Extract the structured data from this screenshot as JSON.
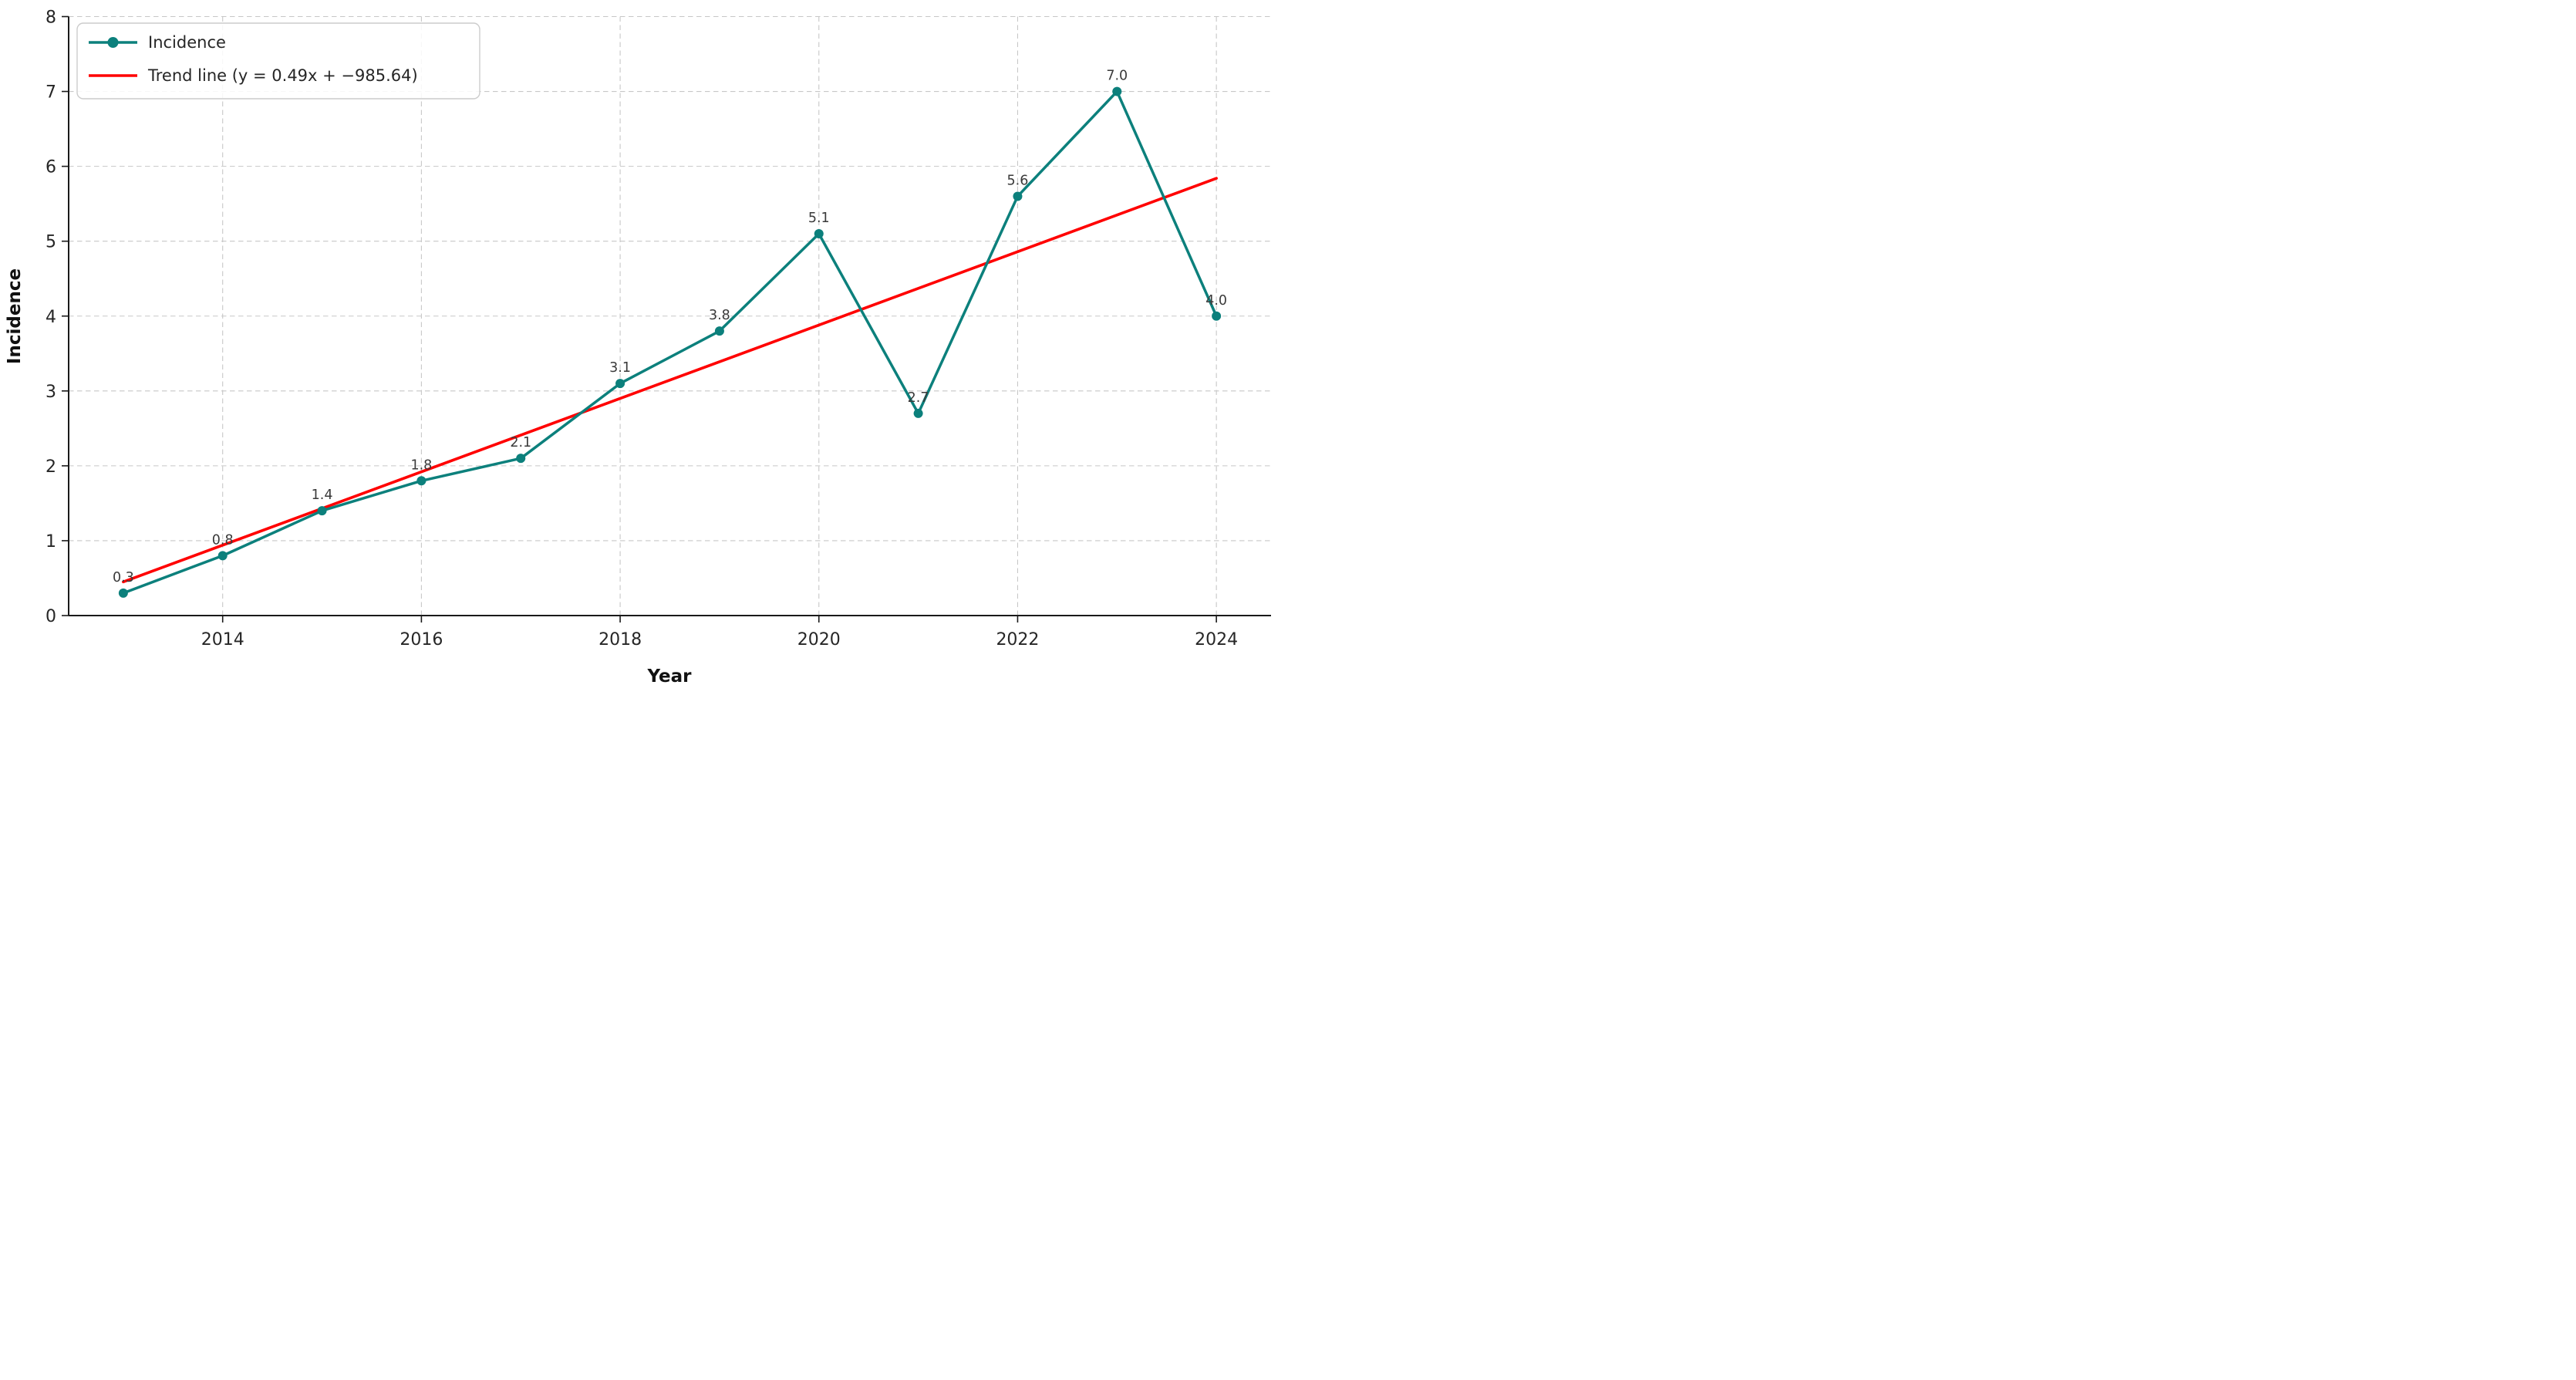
{
  "chart_data": {
    "type": "line",
    "title": "",
    "xlabel": "Year",
    "ylabel": "Incidence",
    "x": [
      2013,
      2014,
      2015,
      2016,
      2017,
      2018,
      2019,
      2020,
      2021,
      2022,
      2023,
      2024
    ],
    "series": [
      {
        "name": "Incidence",
        "values": [
          0.3,
          0.8,
          1.4,
          1.8,
          2.1,
          3.1,
          3.8,
          5.1,
          2.7,
          5.6,
          7.0,
          4.0
        ],
        "labels": [
          "0.3",
          "0.8",
          "1.4",
          "1.8",
          "2.1",
          "3.1",
          "3.8",
          "5.1",
          "2.7",
          "5.6",
          "7.0",
          "4.0"
        ],
        "color": "#0c807c",
        "marker": "circle"
      }
    ],
    "trend": {
      "name": "Trend line (y = 0.49x + −985.64)",
      "slope_label": "0.49",
      "intercept_label": "−985.64",
      "color": "#ff0000",
      "x": [
        2013,
        2024
      ],
      "y": [
        0.45,
        5.84
      ]
    },
    "xlim": [
      2012.45,
      2024.55
    ],
    "ylim": [
      0,
      8
    ],
    "xticks": [
      2014,
      2016,
      2018,
      2020,
      2022,
      2024
    ],
    "yticks": [
      0,
      1,
      2,
      3,
      4,
      5,
      6,
      7,
      8
    ],
    "grid": true,
    "grid_style": "dashed",
    "grid_color": "#c7c7c7",
    "legend_position": "upper left"
  }
}
